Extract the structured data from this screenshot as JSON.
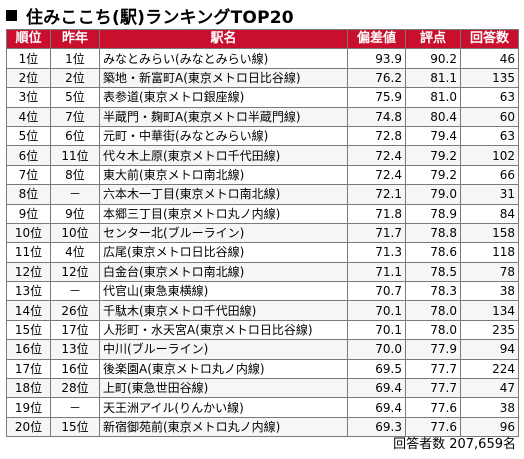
{
  "title": "住みここち(駅)ランキングTOP20",
  "columns": [
    "順位",
    "昨年",
    "駅名",
    "偏差値",
    "評点",
    "回答数"
  ],
  "rows": [
    {
      "rank": "1位",
      "prev": "1位",
      "station": "みなとみらい(みなとみらい線)",
      "deviation": "93.9",
      "score": "90.2",
      "count": "46"
    },
    {
      "rank": "2位",
      "prev": "2位",
      "station": "築地・新富町A(東京メトロ日比谷線)",
      "deviation": "76.2",
      "score": "81.1",
      "count": "135"
    },
    {
      "rank": "3位",
      "prev": "5位",
      "station": "表参道(東京メトロ銀座線)",
      "deviation": "75.9",
      "score": "81.0",
      "count": "63"
    },
    {
      "rank": "4位",
      "prev": "7位",
      "station": "半蔵門・麹町A(東京メトロ半蔵門線)",
      "deviation": "74.8",
      "score": "80.4",
      "count": "60"
    },
    {
      "rank": "5位",
      "prev": "6位",
      "station": "元町・中華街(みなとみらい線)",
      "deviation": "72.8",
      "score": "79.4",
      "count": "63"
    },
    {
      "rank": "6位",
      "prev": "11位",
      "station": "代々木上原(東京メトロ千代田線)",
      "deviation": "72.4",
      "score": "79.2",
      "count": "102"
    },
    {
      "rank": "7位",
      "prev": "8位",
      "station": "東大前(東京メトロ南北線)",
      "deviation": "72.4",
      "score": "79.2",
      "count": "66"
    },
    {
      "rank": "8位",
      "prev": "－",
      "station": "六本木一丁目(東京メトロ南北線)",
      "deviation": "72.1",
      "score": "79.0",
      "count": "31"
    },
    {
      "rank": "9位",
      "prev": "9位",
      "station": "本郷三丁目(東京メトロ丸ノ内線)",
      "deviation": "71.8",
      "score": "78.9",
      "count": "84"
    },
    {
      "rank": "10位",
      "prev": "10位",
      "station": "センター北(ブルーライン)",
      "deviation": "71.7",
      "score": "78.8",
      "count": "158"
    },
    {
      "rank": "11位",
      "prev": "4位",
      "station": "広尾(東京メトロ日比谷線)",
      "deviation": "71.3",
      "score": "78.6",
      "count": "118"
    },
    {
      "rank": "12位",
      "prev": "12位",
      "station": "白金台(東京メトロ南北線)",
      "deviation": "71.1",
      "score": "78.5",
      "count": "78"
    },
    {
      "rank": "13位",
      "prev": "－",
      "station": "代官山(東急東横線)",
      "deviation": "70.7",
      "score": "78.3",
      "count": "38"
    },
    {
      "rank": "14位",
      "prev": "26位",
      "station": "千駄木(東京メトロ千代田線)",
      "deviation": "70.1",
      "score": "78.0",
      "count": "134"
    },
    {
      "rank": "15位",
      "prev": "17位",
      "station": "人形町・水天宮A(東京メトロ日比谷線)",
      "deviation": "70.1",
      "score": "78.0",
      "count": "235"
    },
    {
      "rank": "16位",
      "prev": "13位",
      "station": "中川(ブルーライン)",
      "deviation": "70.0",
      "score": "77.9",
      "count": "94"
    },
    {
      "rank": "17位",
      "prev": "16位",
      "station": "後楽園A(東京メトロ丸ノ内線)",
      "deviation": "69.5",
      "score": "77.7",
      "count": "224"
    },
    {
      "rank": "18位",
      "prev": "28位",
      "station": "上町(東急世田谷線)",
      "deviation": "69.4",
      "score": "77.7",
      "count": "47"
    },
    {
      "rank": "19位",
      "prev": "－",
      "station": "天王洲アイル(りんかい線)",
      "deviation": "69.4",
      "score": "77.6",
      "count": "38"
    },
    {
      "rank": "20位",
      "prev": "15位",
      "station": "新宿御苑前(東京メトロ丸ノ内線)",
      "deviation": "69.3",
      "score": "77.6",
      "count": "96"
    }
  ],
  "footer": "回答者数 207,659名",
  "colors": {
    "header_bg": "#c8102e",
    "header_text": "#ffffff",
    "border": "#7a7a7a"
  },
  "icons": {
    "title_marker": "black-square-icon"
  }
}
